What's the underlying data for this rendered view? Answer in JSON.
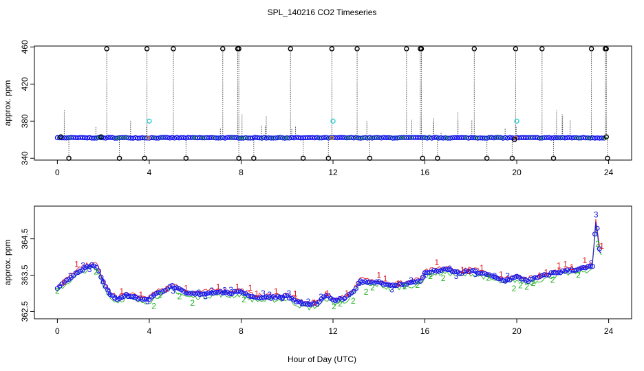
{
  "title": "SPL_140216  CO2 Timeseries",
  "xlabel": "Hour of Day (UTC)",
  "colors": {
    "frame": "#000000",
    "series1": "#e0101c",
    "series2": "#22b022",
    "series3": "#1a1ae6",
    "points": "#1010ee",
    "outliers": "#000000",
    "cyan": "#20c8d0",
    "orange": "#e08a20"
  },
  "chart_data": [
    {
      "type": "scatter",
      "panel": "top",
      "ylabel": "approx. ppm",
      "xlim": [
        -1,
        25
      ],
      "ylim": [
        338,
        461
      ],
      "xticks": [
        "0",
        "4",
        "8",
        "12",
        "16",
        "20",
        "24"
      ],
      "yticks": [
        "340",
        "380",
        "420",
        "460"
      ],
      "baseline": 362,
      "high_outliers_x": [
        2.15,
        3.9,
        5.05,
        7.2,
        7.85,
        7.9,
        10.15,
        11.95,
        13.05,
        15.2,
        15.8,
        15.85,
        18.15,
        19.95,
        21.1,
        23.25,
        23.85,
        23.9
      ],
      "high_outlier_value": 458,
      "low_outliers_x": [
        0.5,
        2.7,
        3.8,
        5.6,
        7.9,
        8.55,
        10.7,
        11.8,
        13.6,
        15.9,
        16.55,
        18.7,
        19.8,
        21.6,
        23.95
      ],
      "low_outlier_value": 340,
      "cyan_points": [
        {
          "x": 4.0,
          "y": 380
        },
        {
          "x": 12.0,
          "y": 380
        },
        {
          "x": 20.0,
          "y": 380
        }
      ]
    },
    {
      "type": "line",
      "panel": "bottom",
      "ylabel": "approx. ppm",
      "xlim": [
        -1,
        25
      ],
      "ylim": [
        362.3,
        365.4
      ],
      "xticks": [
        "0",
        "4",
        "8",
        "12",
        "16",
        "20",
        "24"
      ],
      "yticks": [
        "362.5",
        "363.5",
        "364.5"
      ],
      "series_labels": [
        "1",
        "2",
        "3"
      ],
      "profile": [
        {
          "x": 0.0,
          "y": 363.15
        },
        {
          "x": 0.3,
          "y": 363.3
        },
        {
          "x": 0.6,
          "y": 363.45
        },
        {
          "x": 0.9,
          "y": 363.6
        },
        {
          "x": 1.2,
          "y": 363.7
        },
        {
          "x": 1.5,
          "y": 363.78
        },
        {
          "x": 1.75,
          "y": 363.72
        },
        {
          "x": 2.0,
          "y": 363.3
        },
        {
          "x": 2.3,
          "y": 362.95
        },
        {
          "x": 2.6,
          "y": 362.85
        },
        {
          "x": 3.0,
          "y": 362.95
        },
        {
          "x": 3.3,
          "y": 362.9
        },
        {
          "x": 3.6,
          "y": 362.85
        },
        {
          "x": 4.0,
          "y": 362.85
        },
        {
          "x": 4.3,
          "y": 362.98
        },
        {
          "x": 4.7,
          "y": 363.1
        },
        {
          "x": 5.0,
          "y": 363.2
        },
        {
          "x": 5.3,
          "y": 363.1
        },
        {
          "x": 5.6,
          "y": 363.0
        },
        {
          "x": 6.0,
          "y": 362.98
        },
        {
          "x": 6.5,
          "y": 363.0
        },
        {
          "x": 7.0,
          "y": 363.05
        },
        {
          "x": 7.5,
          "y": 363.0
        },
        {
          "x": 8.0,
          "y": 363.05
        },
        {
          "x": 8.5,
          "y": 362.9
        },
        {
          "x": 9.0,
          "y": 362.88
        },
        {
          "x": 9.5,
          "y": 362.9
        },
        {
          "x": 10.0,
          "y": 362.92
        },
        {
          "x": 10.5,
          "y": 362.75
        },
        {
          "x": 11.0,
          "y": 362.68
        },
        {
          "x": 11.4,
          "y": 362.75
        },
        {
          "x": 11.7,
          "y": 362.95
        },
        {
          "x": 12.0,
          "y": 362.8
        },
        {
          "x": 12.5,
          "y": 362.85
        },
        {
          "x": 12.8,
          "y": 363.0
        },
        {
          "x": 13.0,
          "y": 363.15
        },
        {
          "x": 13.2,
          "y": 363.35
        },
        {
          "x": 13.6,
          "y": 363.3
        },
        {
          "x": 14.0,
          "y": 363.32
        },
        {
          "x": 14.5,
          "y": 363.2
        },
        {
          "x": 15.0,
          "y": 363.25
        },
        {
          "x": 15.5,
          "y": 363.3
        },
        {
          "x": 15.8,
          "y": 363.35
        },
        {
          "x": 16.0,
          "y": 363.55
        },
        {
          "x": 16.5,
          "y": 363.62
        },
        {
          "x": 17.0,
          "y": 363.65
        },
        {
          "x": 17.5,
          "y": 363.55
        },
        {
          "x": 18.0,
          "y": 363.62
        },
        {
          "x": 18.5,
          "y": 363.55
        },
        {
          "x": 19.0,
          "y": 363.45
        },
        {
          "x": 19.5,
          "y": 363.35
        },
        {
          "x": 20.0,
          "y": 363.45
        },
        {
          "x": 20.5,
          "y": 363.35
        },
        {
          "x": 21.0,
          "y": 363.45
        },
        {
          "x": 21.5,
          "y": 363.55
        },
        {
          "x": 22.0,
          "y": 363.6
        },
        {
          "x": 22.5,
          "y": 363.65
        },
        {
          "x": 23.0,
          "y": 363.7
        },
        {
          "x": 23.3,
          "y": 363.75
        },
        {
          "x": 23.45,
          "y": 365.05
        },
        {
          "x": 23.6,
          "y": 364.2
        },
        {
          "x": 23.75,
          "y": 364.1
        }
      ]
    }
  ]
}
